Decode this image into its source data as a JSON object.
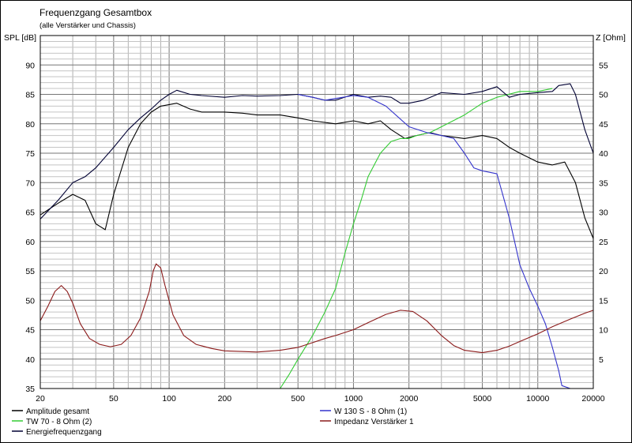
{
  "chart_data": {
    "type": "line",
    "title": "Frequenzgang Gesamtbox",
    "subtitle": "(alle Verstärker und Chassis)",
    "ylabel": "SPL [dB]",
    "y2label": "Z [Ohm]",
    "xscale": "log",
    "xlim": [
      20,
      20000
    ],
    "ylim": [
      35,
      95
    ],
    "y2lim": [
      0,
      60
    ],
    "x_ticks": [
      20,
      50,
      100,
      200,
      500,
      1000,
      2000,
      5000,
      10000,
      20000
    ],
    "x_tick_labels": [
      "20",
      "50",
      "100",
      "200",
      "500",
      "1000",
      "2000",
      "5000",
      "10000",
      "20000"
    ],
    "y_ticks": [
      35,
      40,
      45,
      50,
      55,
      60,
      65,
      70,
      75,
      80,
      85,
      90
    ],
    "y_tick_labels": [
      "35",
      "40",
      "45",
      "50",
      "55",
      "60",
      "65",
      "70",
      "75",
      "80",
      "85",
      "90"
    ],
    "y2_ticks": [
      5,
      10,
      15,
      20,
      25,
      30,
      35,
      40,
      45,
      50,
      55
    ],
    "y2_tick_labels": [
      "5",
      "10",
      "15",
      "20",
      "25",
      "30",
      "35",
      "40",
      "45",
      "50",
      "55"
    ],
    "grid": true,
    "series": [
      {
        "name": "Amplitude gesamt",
        "color": "#000000",
        "axis": "left",
        "points": [
          [
            20,
            64.5
          ],
          [
            25,
            66.5
          ],
          [
            30,
            68
          ],
          [
            35,
            67
          ],
          [
            40,
            63
          ],
          [
            45,
            62
          ],
          [
            50,
            68
          ],
          [
            60,
            76
          ],
          [
            70,
            80
          ],
          [
            80,
            82
          ],
          [
            90,
            83
          ],
          [
            110,
            83.5
          ],
          [
            130,
            82.5
          ],
          [
            150,
            82
          ],
          [
            200,
            82
          ],
          [
            250,
            81.8
          ],
          [
            300,
            81.5
          ],
          [
            400,
            81.5
          ],
          [
            500,
            81
          ],
          [
            600,
            80.5
          ],
          [
            800,
            80
          ],
          [
            1000,
            80.5
          ],
          [
            1200,
            80
          ],
          [
            1400,
            80.5
          ],
          [
            1600,
            79
          ],
          [
            1900,
            77.5
          ],
          [
            2200,
            78
          ],
          [
            2600,
            78.5
          ],
          [
            3000,
            78
          ],
          [
            4000,
            77.5
          ],
          [
            5000,
            78
          ],
          [
            6000,
            77.5
          ],
          [
            7000,
            76
          ],
          [
            8000,
            75
          ],
          [
            10000,
            73.5
          ],
          [
            12000,
            73
          ],
          [
            14000,
            73.5
          ],
          [
            16000,
            70
          ],
          [
            18000,
            64
          ],
          [
            20000,
            60.5
          ]
        ]
      },
      {
        "name": "TW 70 - 8 Ohm (2)",
        "color": "#33cc33",
        "axis": "left",
        "points": [
          [
            20,
            35
          ],
          [
            400,
            35
          ],
          [
            450,
            37.5
          ],
          [
            500,
            40
          ],
          [
            600,
            44
          ],
          [
            700,
            48
          ],
          [
            800,
            52
          ],
          [
            900,
            58
          ],
          [
            1000,
            63
          ],
          [
            1100,
            67
          ],
          [
            1200,
            71
          ],
          [
            1400,
            75
          ],
          [
            1600,
            77
          ],
          [
            1800,
            77.5
          ],
          [
            2000,
            77.5
          ],
          [
            2200,
            78
          ],
          [
            2600,
            78.5
          ],
          [
            3000,
            79.5
          ],
          [
            4000,
            81.5
          ],
          [
            5000,
            83.5
          ],
          [
            6000,
            84.5
          ],
          [
            8000,
            85.5
          ],
          [
            10000,
            85.5
          ],
          [
            12000,
            86
          ]
        ]
      },
      {
        "name": "Energiefrequenzgang",
        "color": "#000033",
        "axis": "left",
        "points": [
          [
            20,
            63.8
          ],
          [
            25,
            67
          ],
          [
            30,
            70
          ],
          [
            35,
            71
          ],
          [
            40,
            72.5
          ],
          [
            50,
            76
          ],
          [
            60,
            79
          ],
          [
            70,
            81
          ],
          [
            80,
            82.5
          ],
          [
            90,
            84
          ],
          [
            100,
            85
          ],
          [
            110,
            85.7
          ],
          [
            130,
            85
          ],
          [
            150,
            84.8
          ],
          [
            200,
            84.5
          ],
          [
            250,
            84.8
          ],
          [
            300,
            84.7
          ],
          [
            400,
            84.8
          ],
          [
            500,
            85
          ],
          [
            600,
            84.5
          ],
          [
            700,
            84
          ],
          [
            800,
            84
          ],
          [
            1000,
            85
          ],
          [
            1200,
            84.5
          ],
          [
            1400,
            84.7
          ],
          [
            1600,
            84.5
          ],
          [
            1800,
            83.5
          ],
          [
            2000,
            83.5
          ],
          [
            2400,
            84
          ],
          [
            3000,
            85.3
          ],
          [
            4000,
            85
          ],
          [
            5000,
            85.5
          ],
          [
            6000,
            86.3
          ],
          [
            7000,
            84.5
          ],
          [
            8000,
            85
          ],
          [
            10000,
            85.3
          ],
          [
            12000,
            85.5
          ],
          [
            13000,
            86.5
          ],
          [
            15000,
            86.8
          ],
          [
            16000,
            85
          ],
          [
            18000,
            79
          ],
          [
            20000,
            75
          ]
        ]
      },
      {
        "name": "W 130 S - 8 Ohm (1)",
        "color": "#3333cc",
        "axis": "left",
        "points": [
          [
            500,
            85
          ],
          [
            600,
            84.5
          ],
          [
            700,
            84
          ],
          [
            800,
            84.3
          ],
          [
            1000,
            84.8
          ],
          [
            1200,
            84.5
          ],
          [
            1500,
            83
          ],
          [
            2000,
            79.5
          ],
          [
            2500,
            78.5
          ],
          [
            3000,
            78
          ],
          [
            3500,
            77.5
          ],
          [
            4000,
            75
          ],
          [
            4500,
            72.5
          ],
          [
            5000,
            72
          ],
          [
            6000,
            71.5
          ],
          [
            7000,
            64
          ],
          [
            8000,
            56
          ],
          [
            9000,
            52
          ],
          [
            10000,
            49
          ],
          [
            11000,
            46
          ],
          [
            12000,
            42
          ],
          [
            13000,
            38
          ],
          [
            13500,
            35.5
          ],
          [
            15000,
            35
          ],
          [
            20000,
            35
          ]
        ]
      },
      {
        "name": "Impedanz Verstärker 1",
        "color": "#8b1a1a",
        "axis": "right",
        "points": [
          [
            20,
            11.5
          ],
          [
            22,
            14
          ],
          [
            24,
            16.5
          ],
          [
            26,
            17.5
          ],
          [
            28,
            16.5
          ],
          [
            30,
            14.5
          ],
          [
            33,
            11
          ],
          [
            37,
            8.5
          ],
          [
            42,
            7.5
          ],
          [
            48,
            7.1
          ],
          [
            55,
            7.5
          ],
          [
            62,
            9
          ],
          [
            70,
            12
          ],
          [
            78,
            16.5
          ],
          [
            82,
            20
          ],
          [
            85,
            21.2
          ],
          [
            90,
            20.5
          ],
          [
            95,
            17.5
          ],
          [
            105,
            12.5
          ],
          [
            120,
            9
          ],
          [
            140,
            7.5
          ],
          [
            170,
            6.8
          ],
          [
            200,
            6.4
          ],
          [
            300,
            6.2
          ],
          [
            400,
            6.5
          ],
          [
            500,
            7
          ],
          [
            600,
            7.8
          ],
          [
            700,
            8.5
          ],
          [
            800,
            9
          ],
          [
            1000,
            10
          ],
          [
            1200,
            11.2
          ],
          [
            1500,
            12.6
          ],
          [
            1800,
            13.3
          ],
          [
            2100,
            13.1
          ],
          [
            2500,
            11.5
          ],
          [
            3000,
            9
          ],
          [
            3500,
            7.3
          ],
          [
            4000,
            6.5
          ],
          [
            5000,
            6.1
          ],
          [
            6000,
            6.5
          ],
          [
            7000,
            7.2
          ],
          [
            8000,
            8
          ],
          [
            10000,
            9.3
          ],
          [
            12000,
            10.5
          ],
          [
            15000,
            11.8
          ],
          [
            18000,
            12.8
          ],
          [
            20000,
            13.3
          ]
        ]
      }
    ],
    "legend": [
      "Amplitude gesamt",
      "TW 70 - 8 Ohm (2)",
      "Energiefrequenzgang",
      "W 130 S - 8 Ohm (1)",
      "Impedanz Verstärker 1"
    ],
    "legend_placement": "bottom"
  }
}
